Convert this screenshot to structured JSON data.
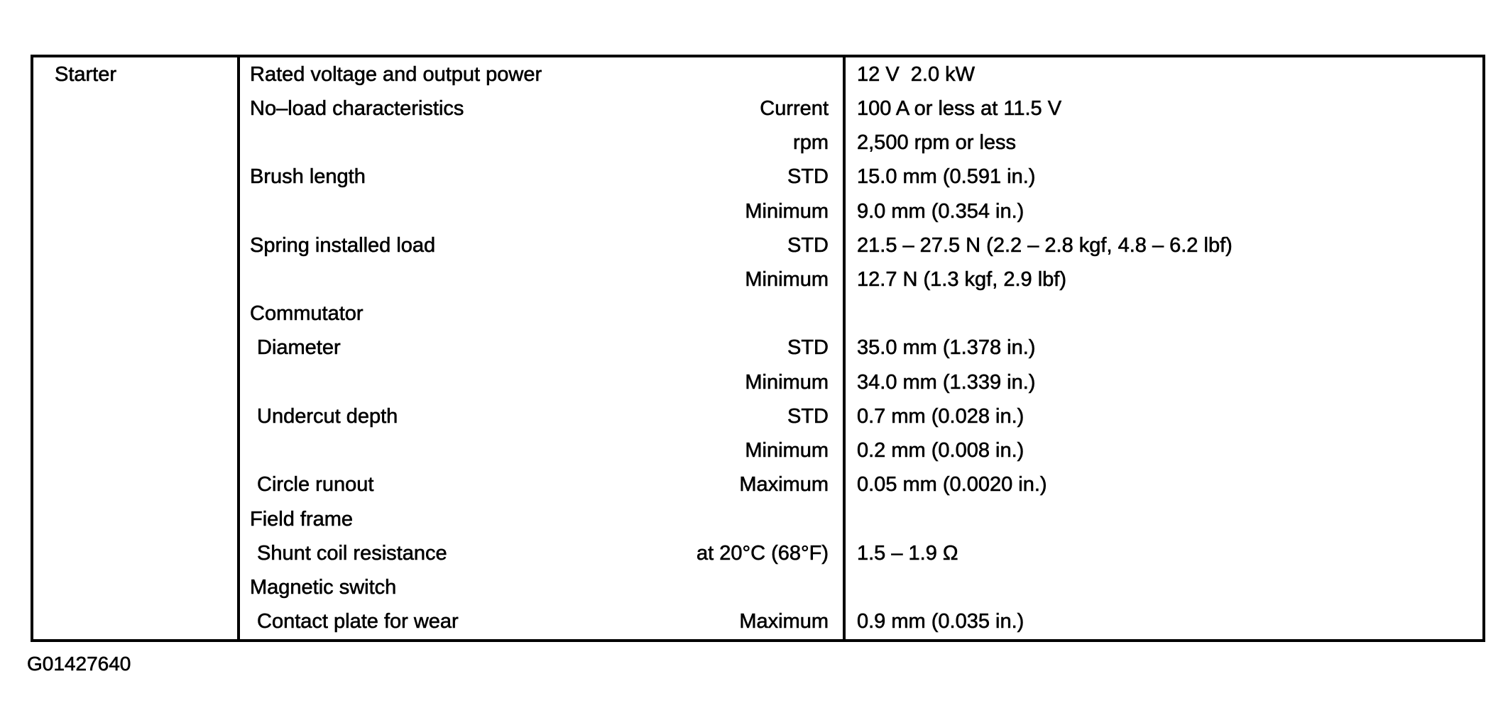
{
  "document": {
    "figure_id": "G01427640"
  },
  "spec_table": {
    "component": "Starter",
    "rows": [
      {
        "item": "Rated voltage and output power",
        "condition": "",
        "value": "12 V  2.0 kW"
      },
      {
        "item": "No–load characteristics",
        "condition": "Current",
        "value": "100 A or less at 11.5 V"
      },
      {
        "item": "",
        "condition": "rpm",
        "value": "2,500 rpm or less"
      },
      {
        "item": "Brush length",
        "condition": "STD",
        "value": "15.0 mm (0.591 in.)"
      },
      {
        "item": "",
        "condition": "Minimum",
        "value": "9.0 mm (0.354 in.)"
      },
      {
        "item": "Spring installed load",
        "condition": "STD",
        "value": "21.5 – 27.5 N (2.2 – 2.8 kgf, 4.8 – 6.2 lbf)"
      },
      {
        "item": "",
        "condition": "Minimum",
        "value": "12.7 N (1.3 kgf, 2.9 lbf)"
      },
      {
        "item": "Commutator",
        "condition": "",
        "value": ""
      },
      {
        "item": "Diameter",
        "condition": "STD",
        "value": "35.0 mm (1.378 in.)"
      },
      {
        "item": "",
        "condition": "Minimum",
        "value": "34.0 mm (1.339 in.)"
      },
      {
        "item": "Undercut depth",
        "condition": "STD",
        "value": "0.7 mm (0.028 in.)"
      },
      {
        "item": "",
        "condition": "Minimum",
        "value": "0.2 mm (0.008 in.)"
      },
      {
        "item": "Circle runout",
        "condition": "Maximum",
        "value": "0.05 mm (0.0020 in.)"
      },
      {
        "item": "Field frame",
        "condition": "",
        "value": ""
      },
      {
        "item": "Shunt coil resistance",
        "condition": "at 20°C (68°F)",
        "value": "1.5 – 1.9 Ω"
      },
      {
        "item": "Magnetic switch",
        "condition": "",
        "value": ""
      },
      {
        "item": "Contact plate for wear",
        "condition": "Maximum",
        "value": "0.9 mm (0.035 in.)"
      }
    ]
  }
}
